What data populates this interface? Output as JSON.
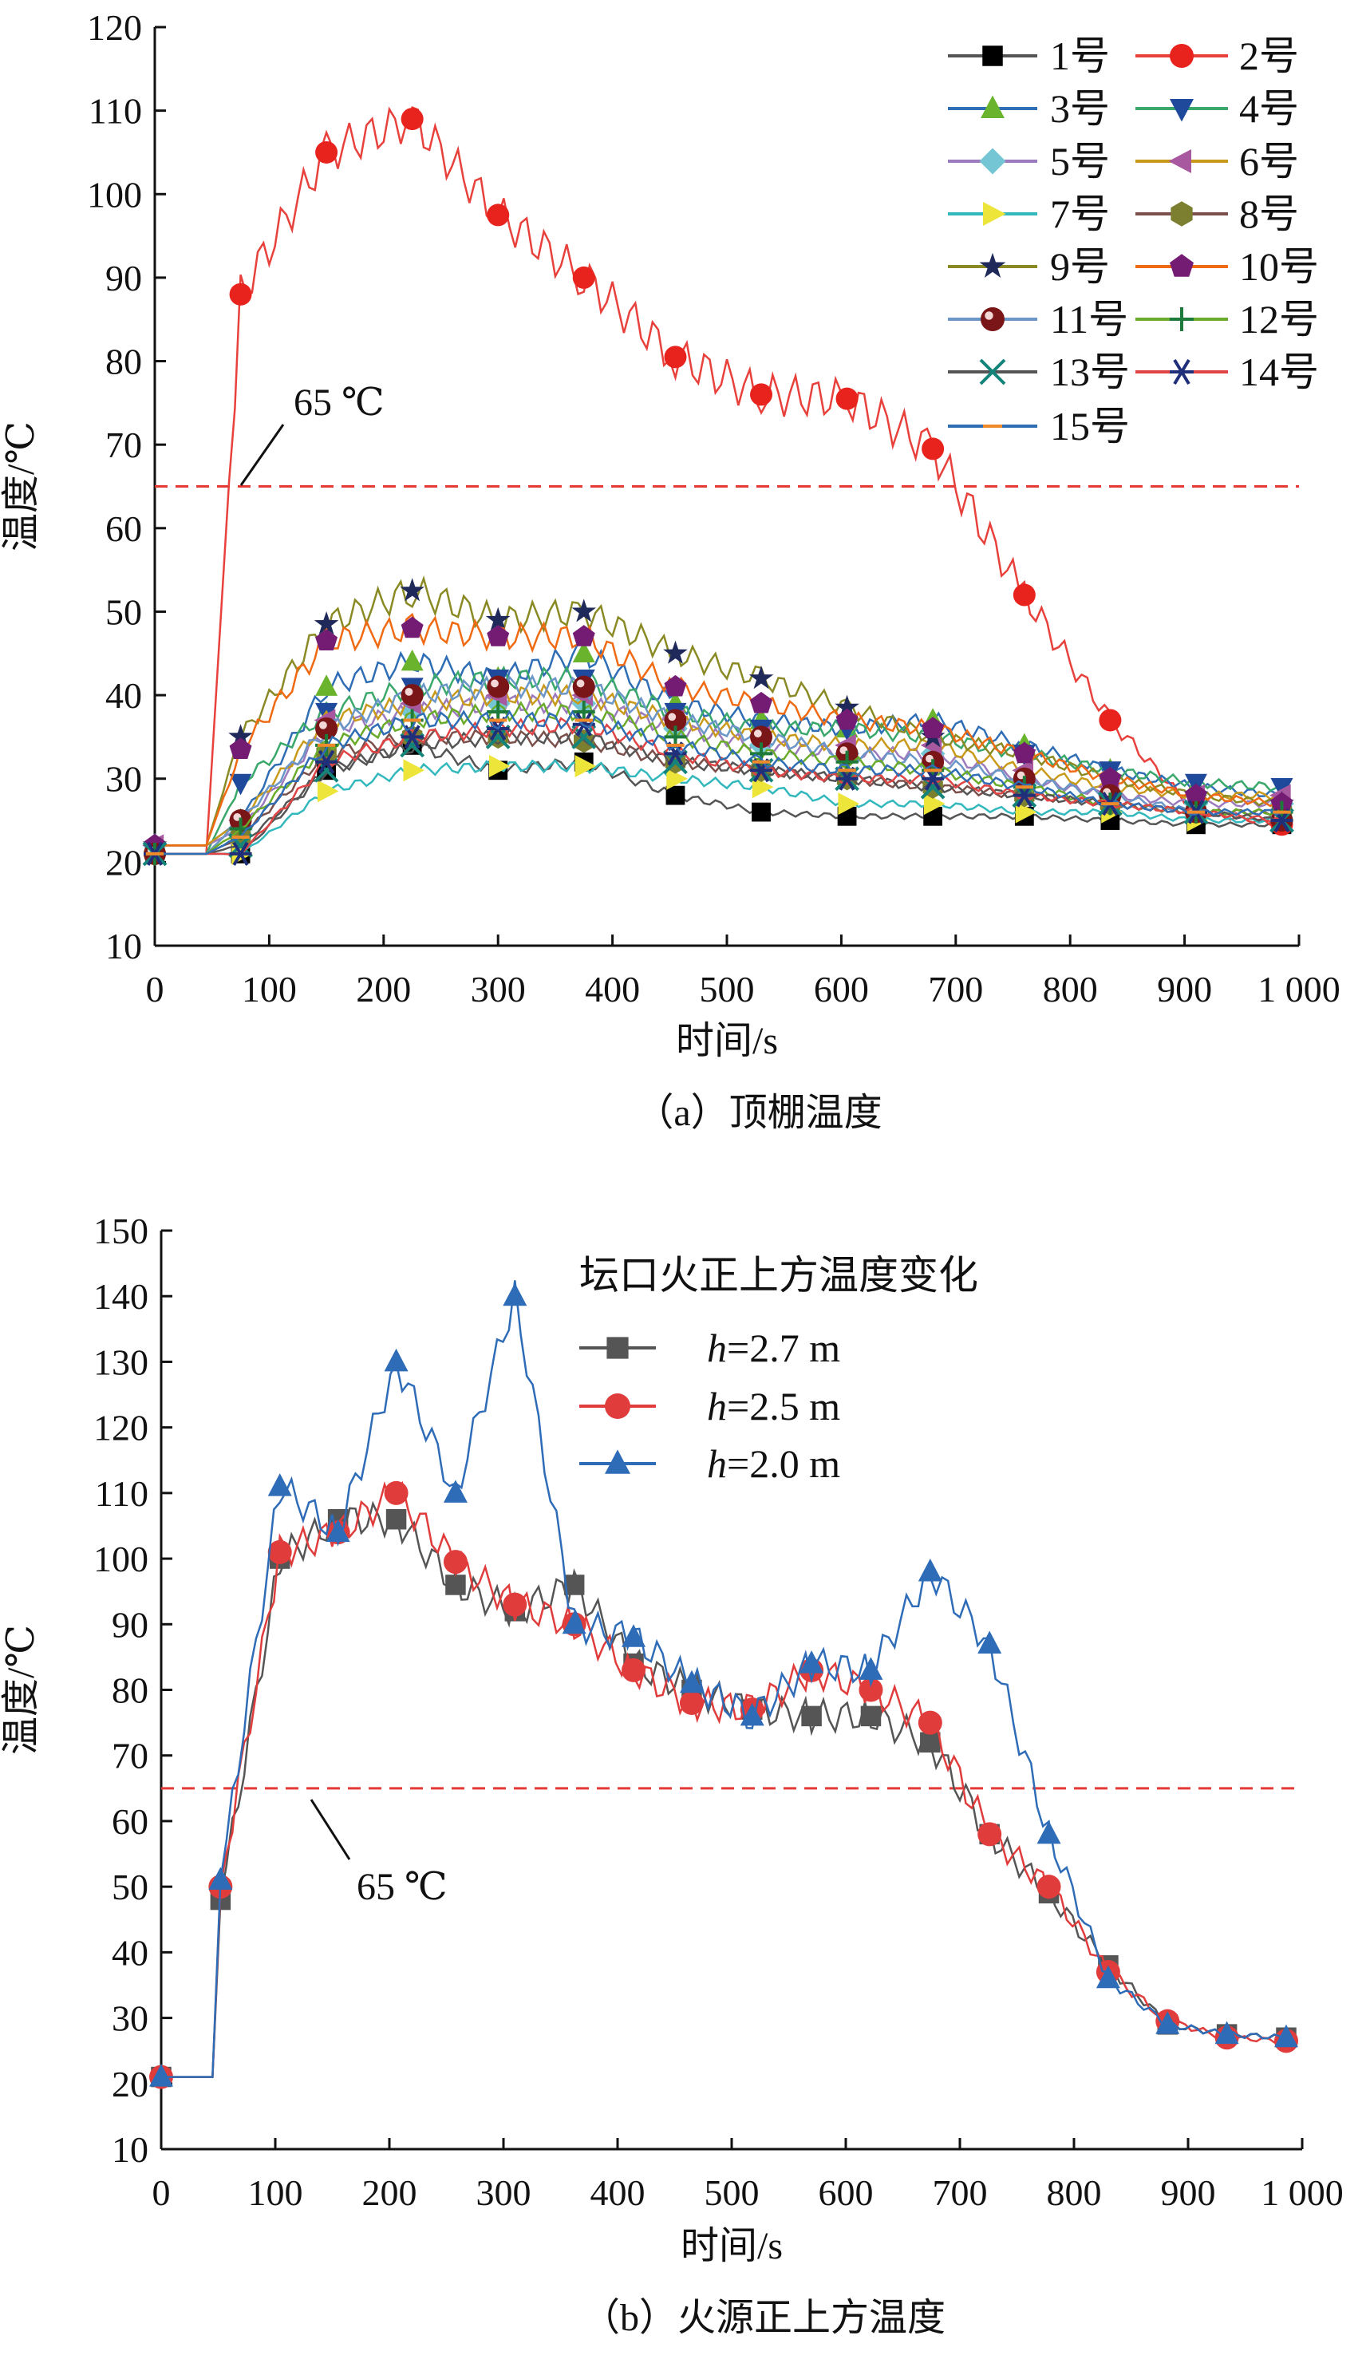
{
  "chart_data": [
    {
      "type": "line",
      "id": "a",
      "caption": "（a）顶棚温度",
      "xlabel": "时间/s",
      "ylabel": "温度/℃",
      "xlim": [
        0,
        1000
      ],
      "ylim": [
        10,
        120
      ],
      "xticks": [
        0,
        100,
        200,
        300,
        400,
        500,
        600,
        700,
        800,
        900,
        1000
      ],
      "xtick_labels": [
        "0",
        "100",
        "200",
        "300",
        "400",
        "500",
        "600",
        "700",
        "800",
        "900",
        "1 000"
      ],
      "yticks": [
        10,
        20,
        30,
        40,
        50,
        60,
        70,
        80,
        90,
        100,
        110,
        120
      ],
      "reference_line": {
        "value": 65,
        "label": "65 ℃",
        "color": "#e53935"
      },
      "legend_position": "top-right",
      "x": [
        0,
        75,
        150,
        225,
        300,
        375,
        455,
        530,
        605,
        680,
        760,
        835,
        910,
        985
      ],
      "series": [
        {
          "name": "1号",
          "color": "#555555",
          "marker": "square",
          "marker_color": "#000000",
          "values": [
            21,
            21,
            31,
            34,
            31,
            32,
            28,
            26,
            25.5,
            25.5,
            25.5,
            25,
            24.5,
            24.5
          ]
        },
        {
          "name": "2号",
          "color": "#e8413c",
          "marker": "circle",
          "marker_color": "#e8221c",
          "values": [
            21,
            88,
            105,
            109,
            97.5,
            90,
            80.5,
            76,
            75.5,
            69.5,
            52,
            37,
            26,
            24.5
          ]
        },
        {
          "name": "3号",
          "color": "#2f6db5",
          "marker": "triangle-up",
          "marker_color": "#6ab42d",
          "values": [
            22,
            25,
            41,
            44,
            42,
            45,
            39,
            37,
            36,
            37,
            34,
            31,
            29,
            28
          ]
        },
        {
          "name": "4号",
          "color": "#3aa86b",
          "marker": "triangle-down",
          "marker_color": "#1f4a9c",
          "values": [
            21,
            29.5,
            38,
            41,
            42,
            42,
            38,
            36,
            36,
            35,
            33,
            31,
            29.5,
            29
          ]
        },
        {
          "name": "5号",
          "color": "#9b7bbd",
          "marker": "diamond",
          "marker_color": "#74c6d4",
          "values": [
            22,
            24,
            36,
            38,
            39,
            39,
            36,
            34,
            33,
            33,
            30,
            28,
            27,
            27
          ]
        },
        {
          "name": "6号",
          "color": "#c99a1a",
          "marker": "triangle-left",
          "marker_color": "#a8589e",
          "values": [
            22,
            25,
            37,
            39,
            40,
            40,
            37,
            35,
            34,
            34,
            31,
            29,
            28,
            28
          ]
        },
        {
          "name": "7号",
          "color": "#33b8bd",
          "marker": "triangle-right",
          "marker_color": "#eee53a",
          "values": [
            21,
            21,
            28.5,
            31,
            31.5,
            31.5,
            30,
            29,
            27,
            27,
            26,
            26,
            25,
            25
          ]
        },
        {
          "name": "8号",
          "color": "#7b4f4a",
          "marker": "hexagon",
          "marker_color": "#7c7f2f",
          "values": [
            21,
            23,
            33,
            35,
            35,
            34.5,
            32,
            31,
            30,
            29,
            28,
            27,
            26,
            26
          ]
        },
        {
          "name": "9号",
          "color": "#8a8a25",
          "marker": "star",
          "marker_color": "#1f2a5a",
          "values": [
            22,
            35,
            48.5,
            52.5,
            49,
            50,
            45,
            42,
            38.5,
            35,
            33,
            30,
            28,
            27
          ]
        },
        {
          "name": "10号",
          "color": "#ef6a12",
          "marker": "pentagon",
          "marker_color": "#741b74",
          "values": [
            22,
            33.5,
            46.5,
            48,
            47,
            47,
            41,
            39,
            37,
            36,
            33,
            30,
            28,
            27
          ]
        },
        {
          "name": "11号",
          "color": "#6a96c8",
          "marker": "sphere",
          "marker_color": "#7a1518",
          "values": [
            21,
            25,
            36,
            40,
            41,
            41,
            37,
            35,
            33,
            32,
            30,
            28,
            26,
            25
          ]
        },
        {
          "name": "12号",
          "color": "#6aac2a",
          "marker": "plus",
          "marker_color": "#1d7a3a",
          "values": [
            21,
            24,
            34,
            37,
            38,
            38,
            35,
            33,
            32,
            31,
            29,
            27,
            26,
            26
          ]
        },
        {
          "name": "13号",
          "color": "#555555",
          "marker": "x",
          "marker_color": "#14847a",
          "values": [
            21,
            22,
            31,
            34,
            35,
            35,
            32,
            31,
            30,
            29,
            28,
            27,
            26,
            25
          ]
        },
        {
          "name": "14号",
          "color": "#e04444",
          "marker": "asterisk",
          "marker_color": "#1f2f7a",
          "values": [
            21,
            21,
            32,
            35,
            36,
            36.5,
            33,
            31,
            30,
            30,
            28,
            27,
            26,
            25
          ]
        },
        {
          "name": "15号",
          "color": "#2f6db5",
          "marker": "dash",
          "marker_color": "#ef8a2a",
          "values": [
            21,
            23,
            34,
            37,
            37,
            37,
            34,
            32,
            31,
            31,
            29,
            27,
            26,
            26
          ]
        }
      ]
    },
    {
      "type": "line",
      "id": "b",
      "caption": "（b）火源正上方温度",
      "xlabel": "时间/s",
      "ylabel": "温度/℃",
      "xlim": [
        0,
        1000
      ],
      "ylim": [
        10,
        150
      ],
      "xticks": [
        0,
        100,
        200,
        300,
        400,
        500,
        600,
        700,
        800,
        900,
        1000
      ],
      "xtick_labels": [
        "0",
        "100",
        "200",
        "300",
        "400",
        "500",
        "600",
        "700",
        "800",
        "900",
        "1 000"
      ],
      "yticks": [
        10,
        20,
        30,
        40,
        50,
        60,
        70,
        80,
        90,
        100,
        110,
        120,
        130,
        140,
        150
      ],
      "reference_line": {
        "value": 65,
        "label": "65 ℃",
        "color": "#e53935"
      },
      "legend_title": "坛口火正上方温度变化",
      "legend_position": "top-right",
      "x": [
        0,
        52,
        104,
        155,
        206,
        258,
        310,
        362,
        414,
        465,
        518,
        570,
        622,
        674,
        726,
        778,
        830,
        882,
        934,
        986
      ],
      "series": [
        {
          "name": "h=2.7 m",
          "name_italic": "h",
          "name_rest": "=2.7 m",
          "color": "#555555",
          "marker": "square",
          "marker_color": "#555555",
          "values": [
            21,
            48,
            100,
            106,
            106,
            96,
            92,
            96,
            84,
            80,
            77,
            76,
            76,
            72,
            58,
            49,
            38,
            29,
            27.5,
            27
          ]
        },
        {
          "name": "h=2.5 m",
          "name_italic": "h",
          "name_rest": "=2.5 m",
          "color": "#e03c3c",
          "marker": "circle",
          "marker_color": "#e03c3c",
          "values": [
            21,
            50,
            101,
            104,
            110,
            99.5,
            93,
            90,
            83,
            78,
            77,
            83,
            80,
            75,
            58,
            50,
            37,
            29.5,
            27,
            26.5
          ]
        },
        {
          "name": "h=2.0 m",
          "name_italic": "h",
          "name_rest": "=2.0 m",
          "color": "#2e6cb8",
          "marker": "triangle-up",
          "marker_color": "#2e6cb8",
          "values": [
            21,
            51,
            111,
            104,
            130,
            110,
            140,
            90,
            88,
            81,
            76,
            84,
            83,
            98,
            87,
            58,
            36,
            29,
            27.5,
            27
          ]
        }
      ]
    }
  ]
}
